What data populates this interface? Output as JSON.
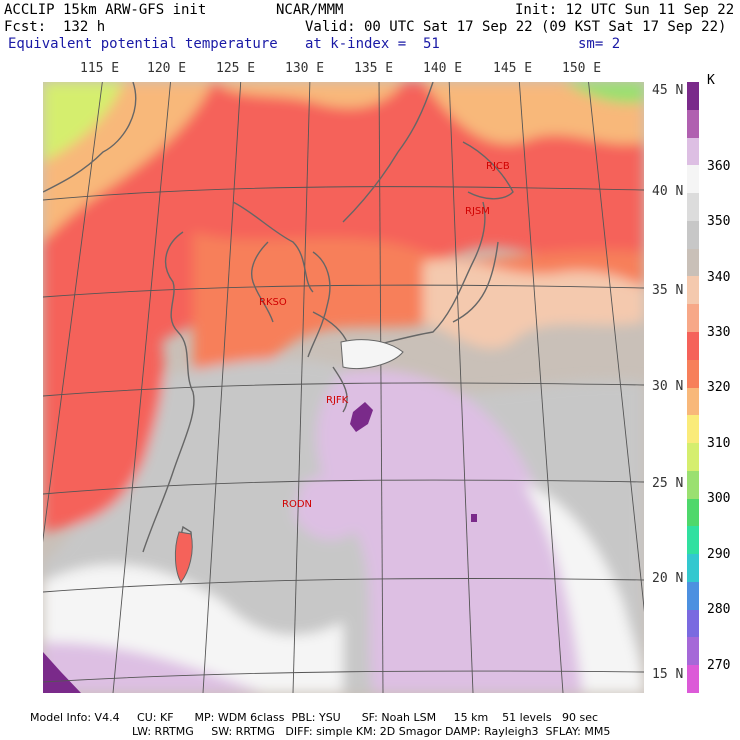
{
  "header": {
    "line1_left": "ACCLIP 15km ARW-GFS init",
    "line1_mid": "NCAR/MMM",
    "line1_right": "Init: 12 UTC Sun 11 Sep 22",
    "line2_left": "Fcst:  132 h",
    "line2_right": "Valid: 00 UTC Sat 17 Sep 22 (09 KST Sat 17 Sep 22)",
    "line3_left": "Equivalent potential temperature",
    "line3_mid": "at k-index =  51",
    "line3_right": "sm= 2"
  },
  "longitudes": [
    "115 E",
    "120 E",
    "125 E",
    "130 E",
    "135 E",
    "140 E",
    "145 E",
    "150 E"
  ],
  "latitudes": [
    "45 N",
    "40 N",
    "35 N",
    "30 N",
    "25 N",
    "20 N",
    "15 N"
  ],
  "colorbar": {
    "unit": "K",
    "labels": [
      "360",
      "350",
      "340",
      "330",
      "320",
      "310",
      "300",
      "290",
      "280",
      "270"
    ],
    "colors": [
      "#7a2a8a",
      "#b060b0",
      "#ddbfe3",
      "#f5f5f5",
      "#dcdcdc",
      "#c7c7c7",
      "#c9c0b8",
      "#f4c9ae",
      "#f7a888",
      "#f5625a",
      "#f77f5a",
      "#f8b87a",
      "#faeb7a",
      "#d5ee6e",
      "#9ae070",
      "#4ed86b",
      "#30e0a0",
      "#33c8cf",
      "#4d90e0",
      "#7a6ae0",
      "#a568d8",
      "#dc5ad8"
    ]
  },
  "stations": {
    "rjcb": "RJCB",
    "rjsm": "RJSM",
    "rkso": "RKSO",
    "rjfk": "RJFK",
    "rodn": "RODN"
  },
  "footer": {
    "line1": "Model Info: V4.4     CU: KF      MP: WDM 6class  PBL: YSU      SF: Noah LSM     15 km    51 levels   90 sec",
    "line2": "LW: RRTMG     SW: RRTMG   DIFF: simple KM: 2D Smagor DAMP: Rayleigh3  SFLAY: MM5"
  }
}
